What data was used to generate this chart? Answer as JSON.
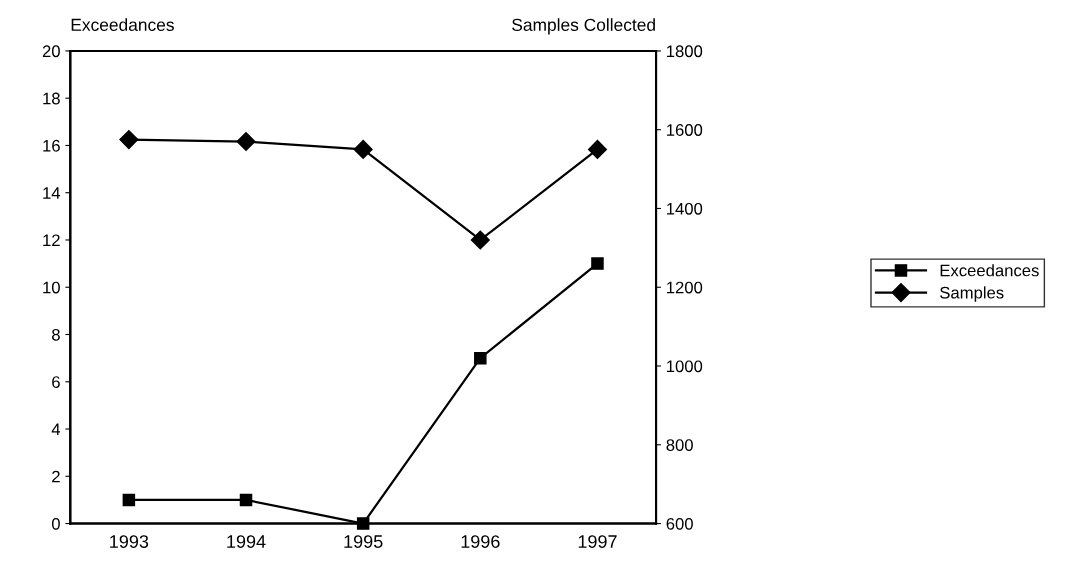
{
  "chart_data": {
    "type": "line",
    "ylabel": "Exceedances",
    "y2label": "Samples Collected",
    "categories": [
      "1993",
      "1994",
      "1995",
      "1996",
      "1997"
    ],
    "series": [
      {
        "name": "Exceedances",
        "color": "#000000",
        "marker": "square",
        "values": [
          1,
          1,
          0,
          7,
          11
        ]
      },
      {
        "name": "Samples",
        "color": "#000000",
        "marker": "diamond",
        "axis": "y2",
        "values": [
          1575,
          1570,
          1550,
          1320,
          1550
        ]
      }
    ],
    "ylim": [
      0,
      20
    ],
    "yticks": [
      0,
      2,
      4,
      6,
      8,
      10,
      12,
      14,
      16,
      18,
      20
    ],
    "y2lim": [
      600,
      1800
    ],
    "y2ticks": [
      600,
      800,
      1000,
      1200,
      1400,
      1600,
      1800
    ],
    "grid": false,
    "legend": "right",
    "line_style": "solid"
  }
}
